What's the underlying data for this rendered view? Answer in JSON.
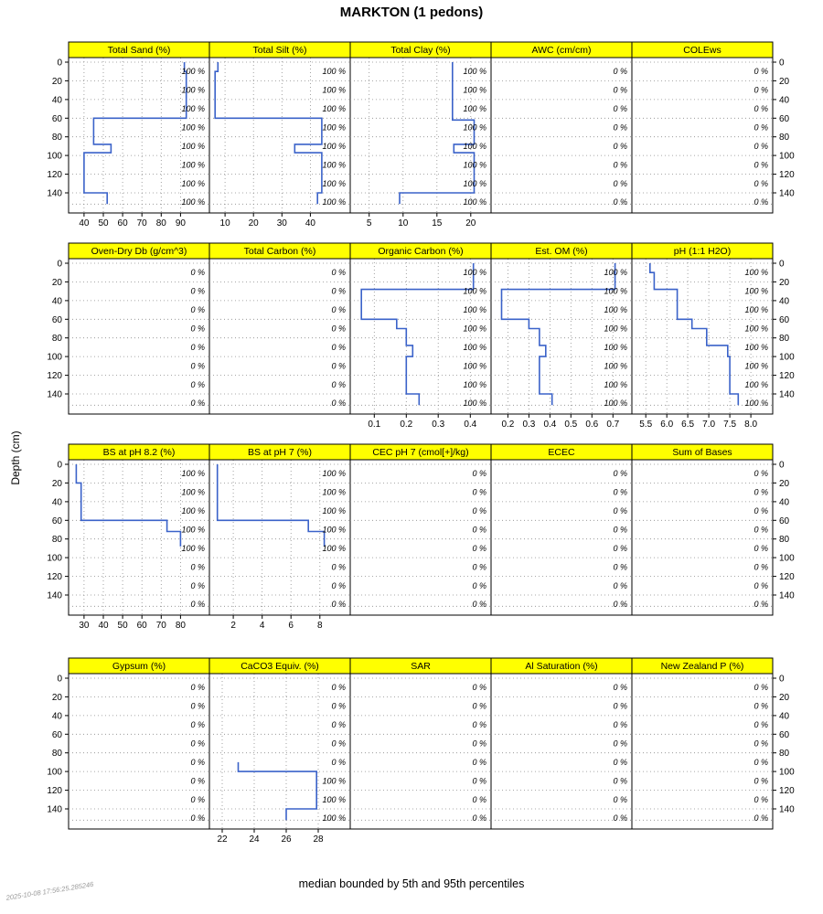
{
  "title": "MARKTON (1 pedons)",
  "caption": "median bounded by 5th and 95th percentiles",
  "watermark": "2025-10-08 17:56:25.285246",
  "ylabel": "Depth (cm)",
  "colors": {
    "strip_bg": "#ffff00",
    "median_line": "#3a62c9",
    "grid": "#8c8c8c",
    "cf_label": "#3d3d3d",
    "axis_text": "#000000",
    "watermark": "#9a9a9a"
  },
  "chart_data": {
    "type": "line",
    "title": "MARKTON (1 pedons)",
    "subtitle": "median bounded by 5th and 95th percentiles",
    "ylabel": "Depth (cm)",
    "y_unit": "cm",
    "depth_ticks": [
      0,
      20,
      40,
      60,
      80,
      100,
      120,
      140
    ],
    "max_depth": 152,
    "grid": true,
    "legend": "none",
    "panels": [
      {
        "title": "Total Sand (%)",
        "x_ticks": [
          "40",
          "50",
          "60",
          "70",
          "80",
          "90"
        ],
        "x_range": [
          32,
          105
        ],
        "segments": [
          [
            0,
            10,
            92
          ],
          [
            10,
            60,
            93
          ],
          [
            60,
            88,
            45
          ],
          [
            88,
            97,
            54
          ],
          [
            97,
            140,
            40
          ],
          [
            140,
            152,
            52
          ]
        ],
        "cf": [
          "100 %",
          "100 %",
          "100 %",
          "100 %",
          "100 %",
          "100 %",
          "100 %",
          "100 %"
        ]
      },
      {
        "title": "Total Silt (%)",
        "x_ticks": [
          "10",
          "20",
          "30",
          "40"
        ],
        "x_range": [
          4.5,
          54
        ],
        "segments": [
          [
            0,
            10,
            7.5
          ],
          [
            10,
            60,
            6.5
          ],
          [
            60,
            88,
            44
          ],
          [
            88,
            97,
            34.5
          ],
          [
            97,
            140,
            44
          ],
          [
            140,
            152,
            42.5
          ]
        ],
        "cf": [
          "100 %",
          "100 %",
          "100 %",
          "100 %",
          "100 %",
          "100 %",
          "100 %",
          "100 %"
        ]
      },
      {
        "title": "Total Clay (%)",
        "x_ticks": [
          "5",
          "10",
          "15",
          "20"
        ],
        "x_range": [
          2.2,
          23
        ],
        "segments": [
          [
            0,
            62,
            17.3
          ],
          [
            62,
            88,
            20.5
          ],
          [
            88,
            97,
            17.5
          ],
          [
            97,
            140,
            20.5
          ],
          [
            140,
            152,
            9.5
          ]
        ],
        "cf": [
          "100 %",
          "100 %",
          "100 %",
          "100 %",
          "100 %",
          "100 %",
          "100 %",
          "100 %"
        ]
      },
      {
        "title": "AWC (cm/cm)",
        "x_ticks": [],
        "x_range": [
          0,
          1
        ],
        "segments": [],
        "cf": [
          "0 %",
          "0 %",
          "0 %",
          "0 %",
          "0 %",
          "0 %",
          "0 %",
          "0 %"
        ]
      },
      {
        "title": "COLEws",
        "x_ticks": [],
        "x_range": [
          0,
          1
        ],
        "segments": [],
        "cf": [
          "0 %",
          "0 %",
          "0 %",
          "0 %",
          "0 %",
          "0 %",
          "0 %",
          "0 %"
        ]
      },
      {
        "title": "Oven-Dry Db (g/cm^3)",
        "x_ticks": [],
        "x_range": [
          0,
          1
        ],
        "segments": [],
        "cf": [
          "0 %",
          "0 %",
          "0 %",
          "0 %",
          "0 %",
          "0 %",
          "0 %",
          "0 %"
        ]
      },
      {
        "title": "Total Carbon (%)",
        "x_ticks": [],
        "x_range": [
          0,
          1
        ],
        "segments": [],
        "cf": [
          "0 %",
          "0 %",
          "0 %",
          "0 %",
          "0 %",
          "0 %",
          "0 %",
          "0 %"
        ]
      },
      {
        "title": "Organic Carbon (%)",
        "x_ticks": [
          "0.1",
          "0.2",
          "0.3",
          "0.4"
        ],
        "x_range": [
          0.025,
          0.465
        ],
        "segments": [
          [
            0,
            28,
            0.41
          ],
          [
            28,
            60,
            0.06
          ],
          [
            60,
            70,
            0.17
          ],
          [
            70,
            88,
            0.2
          ],
          [
            88,
            100,
            0.22
          ],
          [
            100,
            140,
            0.2
          ],
          [
            140,
            152,
            0.24
          ]
        ],
        "cf": [
          "100 %",
          "100 %",
          "100 %",
          "100 %",
          "100 %",
          "100 %",
          "100 %",
          "100 %"
        ]
      },
      {
        "title": "Est. OM (%)",
        "x_ticks": [
          "0.2",
          "0.3",
          "0.4",
          "0.5",
          "0.6",
          "0.7"
        ],
        "x_range": [
          0.12,
          0.79
        ],
        "segments": [
          [
            0,
            28,
            0.71
          ],
          [
            28,
            60,
            0.17
          ],
          [
            60,
            70,
            0.3
          ],
          [
            70,
            88,
            0.35
          ],
          [
            88,
            100,
            0.38
          ],
          [
            100,
            140,
            0.35
          ],
          [
            140,
            152,
            0.41
          ]
        ],
        "cf": [
          "100 %",
          "100 %",
          "100 %",
          "100 %",
          "100 %",
          "100 %",
          "100 %",
          "100 %"
        ]
      },
      {
        "title": "pH (1:1 H2O)",
        "x_ticks": [
          "5.5",
          "6.0",
          "6.5",
          "7.0",
          "7.5",
          "8.0"
        ],
        "x_range": [
          5.17,
          8.52
        ],
        "segments": [
          [
            0,
            10,
            5.6
          ],
          [
            10,
            28,
            5.7
          ],
          [
            28,
            60,
            6.25
          ],
          [
            60,
            70,
            6.6
          ],
          [
            70,
            88,
            6.95
          ],
          [
            88,
            100,
            7.45
          ],
          [
            100,
            140,
            7.5
          ],
          [
            140,
            152,
            7.7
          ]
        ],
        "cf": [
          "100 %",
          "100 %",
          "100 %",
          "100 %",
          "100 %",
          "100 %",
          "100 %",
          "100 %"
        ]
      },
      {
        "title": "BS at pH 8.2 (%)",
        "x_ticks": [
          "30",
          "40",
          "50",
          "60",
          "70",
          "80"
        ],
        "x_range": [
          22,
          95
        ],
        "segments": [
          [
            0,
            20,
            26
          ],
          [
            20,
            60,
            28.5
          ],
          [
            60,
            72,
            73
          ],
          [
            72,
            88,
            80
          ]
        ],
        "cf": [
          "100 %",
          "100 %",
          "100 %",
          "100 %",
          "100 %",
          "0 %",
          "0 %",
          "0 %"
        ]
      },
      {
        "title": "BS at pH 7 (%)",
        "x_ticks": [
          "2",
          "4",
          "6",
          "8"
        ],
        "x_range": [
          0.35,
          10.1
        ],
        "segments": [
          [
            0,
            60,
            0.9
          ],
          [
            60,
            72,
            7.2
          ],
          [
            72,
            88,
            8.3
          ]
        ],
        "cf": [
          "100 %",
          "100 %",
          "100 %",
          "100 %",
          "100 %",
          "0 %",
          "0 %",
          "0 %"
        ]
      },
      {
        "title": "CEC pH 7 (cmol[+]/kg)",
        "x_ticks": [],
        "x_range": [
          0,
          1
        ],
        "segments": [],
        "cf": [
          "0 %",
          "0 %",
          "0 %",
          "0 %",
          "0 %",
          "0 %",
          "0 %",
          "0 %"
        ]
      },
      {
        "title": "ECEC",
        "x_ticks": [],
        "x_range": [
          0,
          1
        ],
        "segments": [],
        "cf": [
          "0 %",
          "0 %",
          "0 %",
          "0 %",
          "0 %",
          "0 %",
          "0 %",
          "0 %"
        ]
      },
      {
        "title": "Sum of Bases",
        "x_ticks": [],
        "x_range": [
          0,
          1
        ],
        "segments": [],
        "cf": [
          "0 %",
          "0 %",
          "0 %",
          "0 %",
          "0 %",
          "0 %",
          "0 %",
          "0 %"
        ]
      },
      {
        "title": "Gypsum (%)",
        "x_ticks": [],
        "x_range": [
          0,
          1
        ],
        "segments": [],
        "cf": [
          "0 %",
          "0 %",
          "0 %",
          "0 %",
          "0 %",
          "0 %",
          "0 %",
          "0 %"
        ]
      },
      {
        "title": "CaCO3 Equiv. (%)",
        "x_ticks": [
          "22",
          "24",
          "26",
          "28"
        ],
        "x_range": [
          21.2,
          30
        ],
        "segments": [
          [
            90,
            100,
            23
          ],
          [
            100,
            140,
            27.9
          ],
          [
            140,
            152,
            26
          ]
        ],
        "cf": [
          "0 %",
          "0 %",
          "0 %",
          "0 %",
          "0 %",
          "100 %",
          "100 %",
          "100 %"
        ]
      },
      {
        "title": "SAR",
        "x_ticks": [],
        "x_range": [
          0,
          1
        ],
        "segments": [],
        "cf": [
          "0 %",
          "0 %",
          "0 %",
          "0 %",
          "0 %",
          "0 %",
          "0 %",
          "0 %"
        ]
      },
      {
        "title": "Al Saturation (%)",
        "x_ticks": [],
        "x_range": [
          0,
          1
        ],
        "segments": [],
        "cf": [
          "0 %",
          "0 %",
          "0 %",
          "0 %",
          "0 %",
          "0 %",
          "0 %",
          "0 %"
        ]
      },
      {
        "title": "New Zealand P (%)",
        "x_ticks": [],
        "x_range": [
          0,
          1
        ],
        "segments": [],
        "cf": [
          "0 %",
          "0 %",
          "0 %",
          "0 %",
          "0 %",
          "0 %",
          "0 %",
          "0 %"
        ]
      }
    ]
  }
}
